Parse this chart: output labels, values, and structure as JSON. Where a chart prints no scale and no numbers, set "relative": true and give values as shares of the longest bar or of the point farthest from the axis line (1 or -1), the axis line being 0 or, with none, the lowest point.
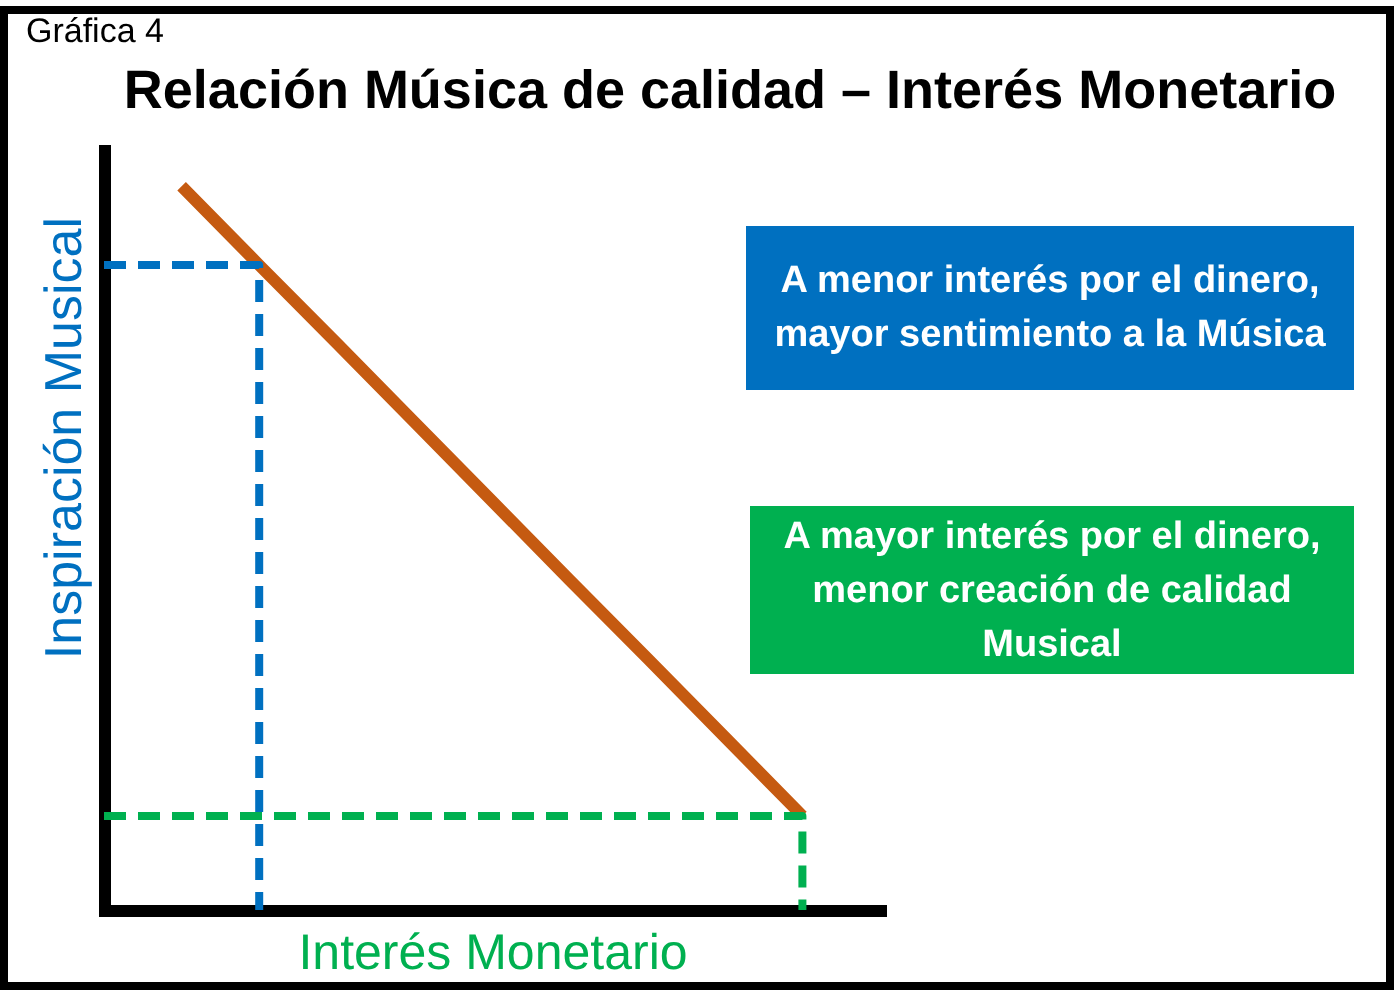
{
  "chart_data": {
    "type": "line",
    "title": "Relación Música de calidad – Interés Monetario",
    "xlabel": "Interés Monetario",
    "ylabel": "Inspiración Musical",
    "annotations": [
      "Gráfica 4",
      "A menor interés por el dinero, mayor sentimiento a la Música",
      "A mayor interés por el dinero, menor creación de calidad Musical"
    ],
    "relative": true,
    "tick_labels": false,
    "categories": [
      null,
      null,
      null,
      null,
      null,
      null,
      null,
      null,
      null,
      null,
      null
    ],
    "series": [
      {
        "color": "#c55a11",
        "values": [
          null,
          1,
          0.891,
          0.783,
          0.674,
          0.565,
          0.456,
          0.348,
          0.239,
          0.13,
          null
        ]
      },
      {
        "type": "step",
        "color": "#0070c0",
        "line_style": "dashed",
        "values": [
          0.891,
          0.891,
          0,
          null,
          null,
          null,
          null,
          null,
          null,
          null,
          null
        ]
      },
      {
        "type": "step",
        "color": "#00b050",
        "line_style": "dashed",
        "values": [
          0.13,
          0.13,
          0.13,
          0.13,
          0.13,
          0.13,
          0.13,
          0.13,
          0.13,
          0,
          null
        ]
      }
    ]
  }
}
